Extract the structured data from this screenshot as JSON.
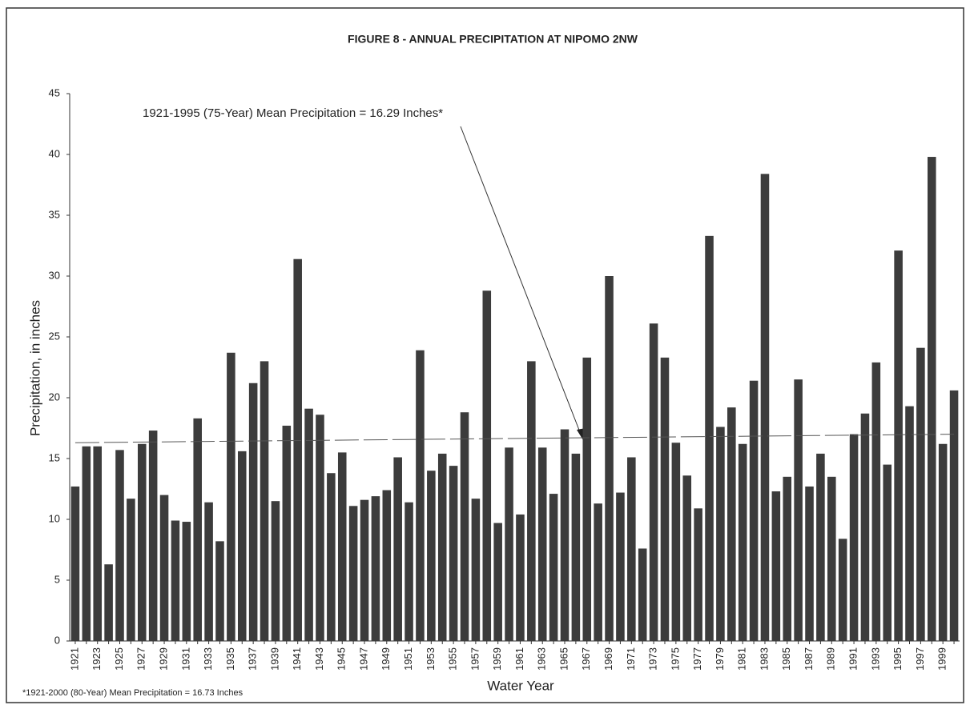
{
  "chart_data": {
    "type": "bar",
    "title": "FIGURE 8 - ANNUAL PRECIPITATION AT NIPOMO 2NW",
    "annotation": "1921-1995 (75-Year) Mean Precipitation = 16.29 Inches*",
    "footnote": "*1921-2000 (80-Year) Mean Precipitation = 16.73 Inches",
    "y_label": "Precipitation, in inches",
    "x_label": "Water Year",
    "color": "#3c3c3c",
    "categories": [
      "1921",
      null,
      "1923",
      null,
      "1925",
      null,
      "1927",
      null,
      "1929",
      null,
      "1931",
      null,
      "1933",
      null,
      "1935",
      null,
      "1937",
      null,
      "1939",
      null,
      "1941",
      null,
      "1943",
      null,
      "1945",
      null,
      "1947",
      null,
      "1949",
      null,
      "1951",
      null,
      "1953",
      null,
      "1955",
      null,
      "1957",
      null,
      "1959",
      null,
      "1961",
      null,
      "1963",
      null,
      "1965",
      null,
      "1967",
      null,
      "1969",
      null,
      "1971",
      null,
      "1973",
      null,
      "1975",
      null,
      "1977",
      null,
      "1979",
      null,
      "1981",
      null,
      "1983",
      null,
      "1985",
      null,
      "1987",
      null,
      "1989",
      null,
      "1991",
      null,
      "1993",
      null,
      "1995",
      null,
      "1997",
      null,
      "1999",
      null
    ],
    "values": [
      12.7,
      16.0,
      16.0,
      6.3,
      15.7,
      11.7,
      16.2,
      17.3,
      12.0,
      9.9,
      9.8,
      18.3,
      11.4,
      8.2,
      23.7,
      15.6,
      21.2,
      23.0,
      11.5,
      17.7,
      31.4,
      19.1,
      18.6,
      13.8,
      15.5,
      11.1,
      11.6,
      11.9,
      12.4,
      15.1,
      11.4,
      23.9,
      14.0,
      15.4,
      14.4,
      18.8,
      11.7,
      28.8,
      9.7,
      15.9,
      10.4,
      23.0,
      15.9,
      12.1,
      17.4,
      15.4,
      23.3,
      11.3,
      30.0,
      12.2,
      15.1,
      7.6,
      26.1,
      23.3,
      16.3,
      13.6,
      10.9,
      33.3,
      17.6,
      19.2,
      16.2,
      21.4,
      38.4,
      12.3,
      13.5,
      21.5,
      12.7,
      15.4,
      13.5,
      8.4,
      17.0,
      18.7,
      22.9,
      14.5,
      32.1,
      19.3,
      24.1,
      39.8,
      16.2,
      20.6
    ],
    "mean_line": {
      "values": [
        16.3,
        17.0
      ],
      "color": "#555555"
    },
    "ylim": [
      0,
      45
    ],
    "yticks": [
      0,
      5,
      10,
      15,
      20,
      25,
      30,
      35,
      40,
      45
    ]
  }
}
